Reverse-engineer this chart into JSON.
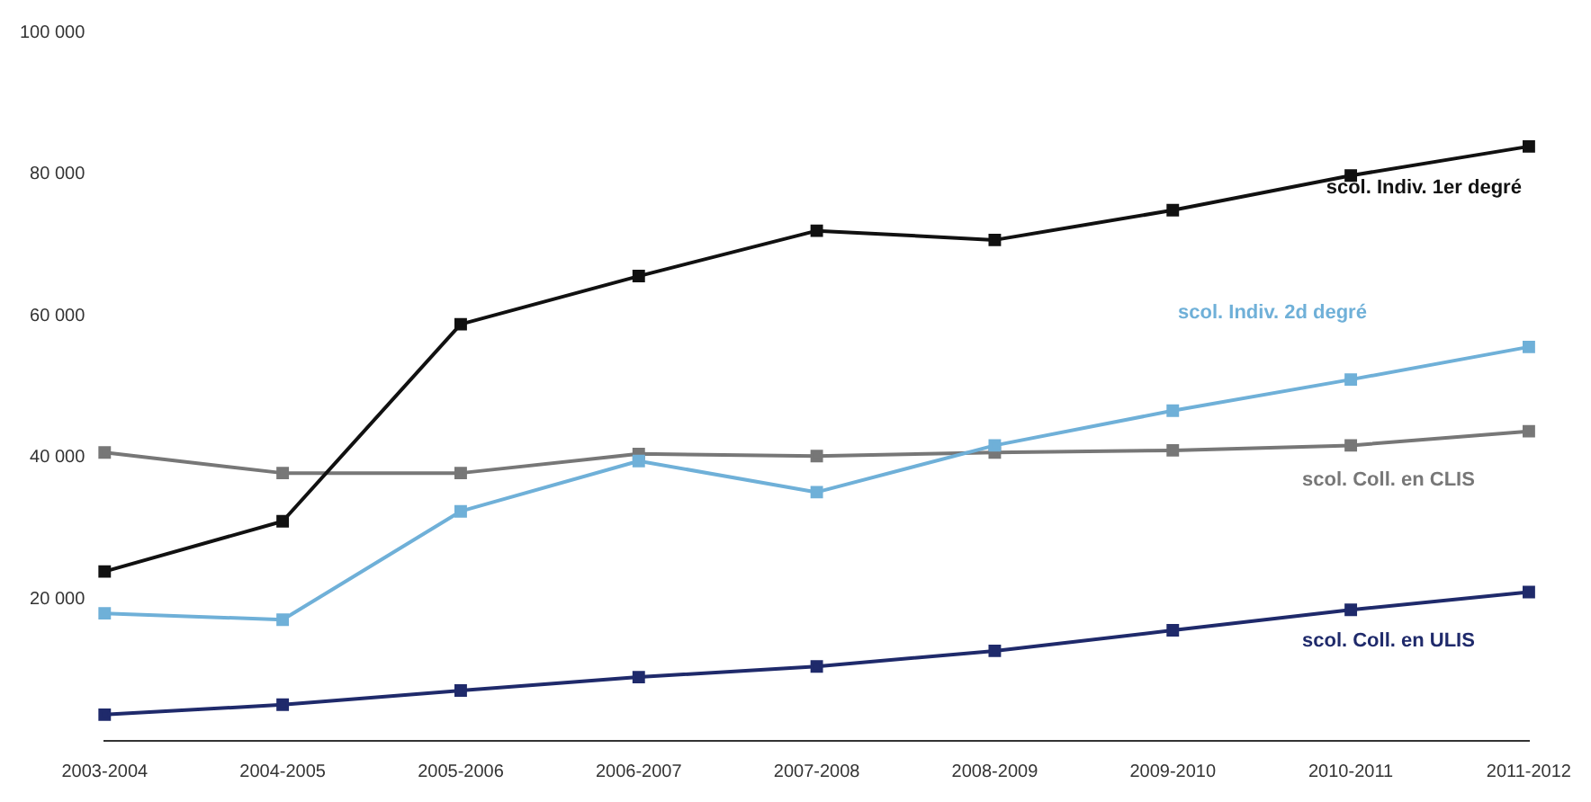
{
  "chart_data": {
    "type": "line",
    "categories": [
      "2003-2004",
      "2004-2005",
      "2005-2006",
      "2006-2007",
      "2007-2008",
      "2008-2009",
      "2009-2010",
      "2010-2011",
      "2011-2012"
    ],
    "series": [
      {
        "name": "scol. Indiv. 1er degré",
        "color": "#111111",
        "values": [
          23900,
          31000,
          58800,
          65600,
          72000,
          70700,
          74900,
          79800,
          83900
        ]
      },
      {
        "name": "scol. Indiv. 2d degré",
        "color": "#6fb0d8",
        "values": [
          18000,
          17100,
          32400,
          39500,
          35100,
          41700,
          46600,
          51000,
          55600
        ]
      },
      {
        "name": "scol. Coll. en CLIS",
        "color": "#777777",
        "values": [
          40700,
          37800,
          37800,
          40500,
          40200,
          40700,
          41000,
          41700,
          43700
        ]
      },
      {
        "name": "scol. Coll. en ULIS",
        "color": "#1f2a6b",
        "values": [
          3700,
          5100,
          7100,
          9000,
          10500,
          12700,
          15600,
          18500,
          21000
        ]
      }
    ],
    "ylim": [
      0,
      100000
    ],
    "yticks": [
      {
        "value": 20000,
        "label": "20 000"
      },
      {
        "value": 40000,
        "label": "40 000"
      },
      {
        "value": 60000,
        "label": "60 000"
      },
      {
        "value": 80000,
        "label": "80 000"
      },
      {
        "value": 100000,
        "label": "100 000"
      }
    ],
    "grid": false,
    "legend": false,
    "marker": "square",
    "line_style": "solid"
  }
}
